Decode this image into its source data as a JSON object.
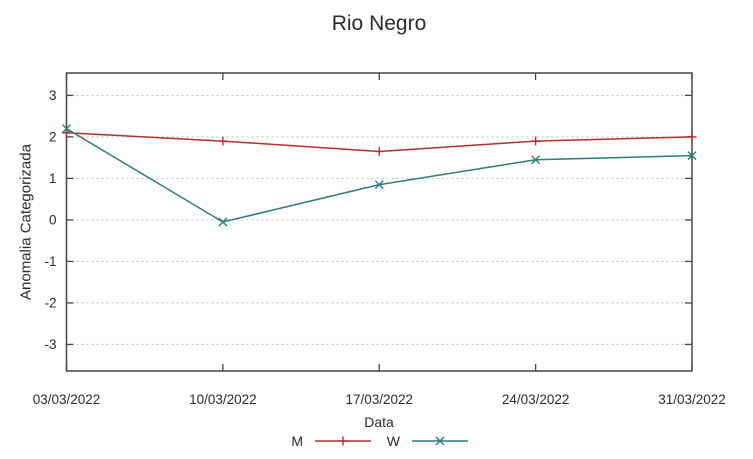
{
  "chart_data": {
    "type": "line",
    "title": "Rio Negro",
    "xlabel": "Data",
    "ylabel": "Anomalia Categorizada",
    "x_tick_labels": [
      "03/03/2022",
      "10/03/2022",
      "17/03/2022",
      "24/03/2022",
      "31/03/2022"
    ],
    "x_days": [
      0,
      7,
      14,
      21,
      28
    ],
    "xlim_days": [
      0,
      28
    ],
    "y_ticks": [
      3,
      2,
      1,
      0,
      -1,
      -2,
      -3
    ],
    "ylim": [
      -3.64,
      3.54
    ],
    "grid": "horizontal-dotted",
    "legend_position": "below-center",
    "series": [
      {
        "name": "M",
        "color": "#b03030",
        "marker": "plus",
        "values": [
          2.1,
          1.9,
          1.65,
          1.9,
          2.0
        ]
      },
      {
        "name": "W",
        "color": "#2a7d7d",
        "marker": "cross",
        "values": [
          2.2,
          -0.05,
          0.85,
          1.45,
          1.55
        ]
      }
    ],
    "colors": {
      "border": "#454545",
      "grid": "#bfbfbf",
      "text": "#2b2b2b",
      "background": "#ffffff"
    }
  }
}
